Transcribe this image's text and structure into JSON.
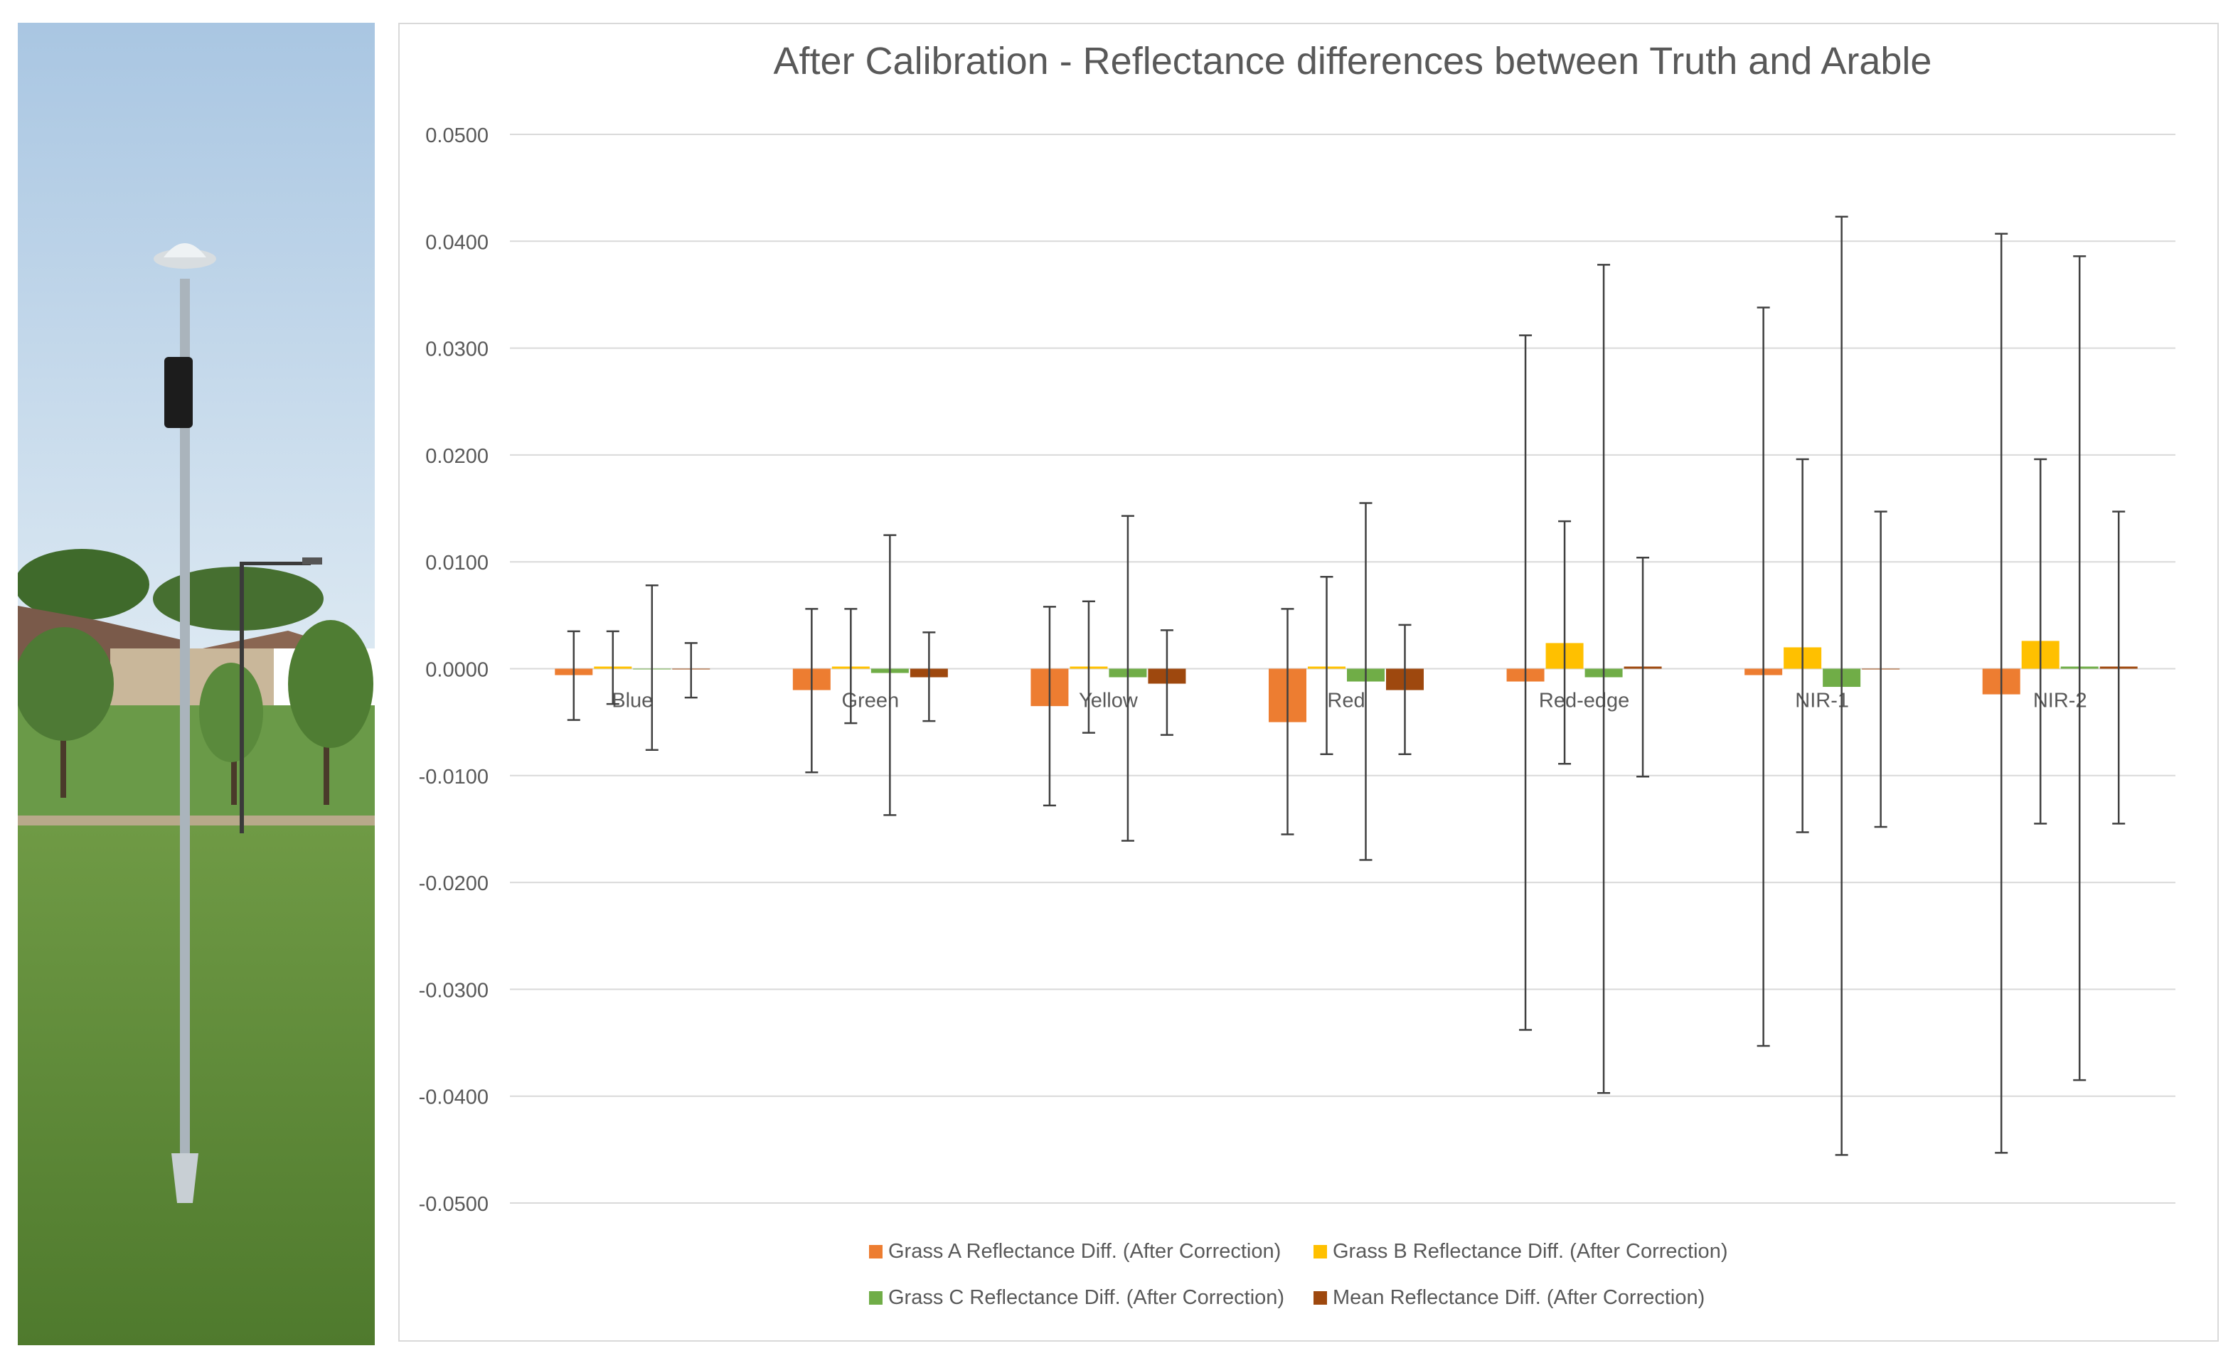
{
  "chart_data": {
    "type": "bar",
    "title": "After Calibration - Reflectance differences between Truth and Arable",
    "xlabel": "",
    "ylabel": "",
    "ylim": [
      -0.05,
      0.05
    ],
    "ytick_step": 0.01,
    "ytick_labels": [
      "0.0500",
      "0.0400",
      "0.0300",
      "0.0200",
      "0.0100",
      "0.0000",
      "-0.0100",
      "-0.0200",
      "-0.0300",
      "-0.0400",
      "-0.0500"
    ],
    "categories": [
      "Blue",
      "Green",
      "Yellow",
      "Red",
      "Red-edge",
      "NIR-1",
      "NIR-2"
    ],
    "grid": true,
    "legend_position": "bottom",
    "series": [
      {
        "name": "Grass A Reflectance Diff. (After Correction)",
        "color": "#ED7D31",
        "values": [
          -0.0006,
          -0.002,
          -0.0035,
          -0.005,
          -0.0012,
          -0.0006,
          -0.0024
        ],
        "err_high": [
          0.0035,
          0.0056,
          0.0058,
          0.0056,
          0.0312,
          0.0338,
          0.0407
        ],
        "err_low": [
          -0.0048,
          -0.0097,
          -0.0128,
          -0.0155,
          -0.0338,
          -0.0353,
          -0.0453
        ]
      },
      {
        "name": "Grass B Reflectance Diff. (After Correction)",
        "color": "#FFC000",
        "values": [
          0.0002,
          0.0002,
          0.0002,
          0.0002,
          0.0024,
          0.002,
          0.0026
        ],
        "err_high": [
          0.0035,
          0.0056,
          0.0063,
          0.0086,
          0.0138,
          0.0196,
          0.0196
        ],
        "err_low": [
          -0.0033,
          -0.0051,
          -0.006,
          -0.008,
          -0.0089,
          -0.0153,
          -0.0145
        ]
      },
      {
        "name": "Grass C Reflectance Diff. (After Correction)",
        "color": "#70AD47",
        "values": [
          0.0,
          -0.0004,
          -0.0008,
          -0.0012,
          -0.0008,
          -0.0017,
          0.0002
        ],
        "err_high": [
          0.0078,
          0.0125,
          0.0143,
          0.0155,
          0.0378,
          0.0423,
          0.0386
        ],
        "err_low": [
          -0.0076,
          -0.0137,
          -0.0161,
          -0.0179,
          -0.0397,
          -0.0455,
          -0.0385
        ]
      },
      {
        "name": "Mean Reflectance Diff. (After Correction)",
        "color": "#9E480E",
        "values": [
          0.0,
          -0.0008,
          -0.0014,
          -0.002,
          0.0002,
          0.0,
          0.0002
        ],
        "err_high": [
          0.0024,
          0.0034,
          0.0036,
          0.0041,
          0.0104,
          0.0147,
          0.0147
        ],
        "err_low": [
          -0.0027,
          -0.0049,
          -0.0062,
          -0.008,
          -0.0101,
          -0.0148,
          -0.0145
        ]
      }
    ]
  },
  "photo": {
    "sky_top": "#a9c6e2",
    "sky_bottom": "#dbe8f2",
    "grass": "#5f8a3a",
    "pole": "#a9b3bb"
  }
}
